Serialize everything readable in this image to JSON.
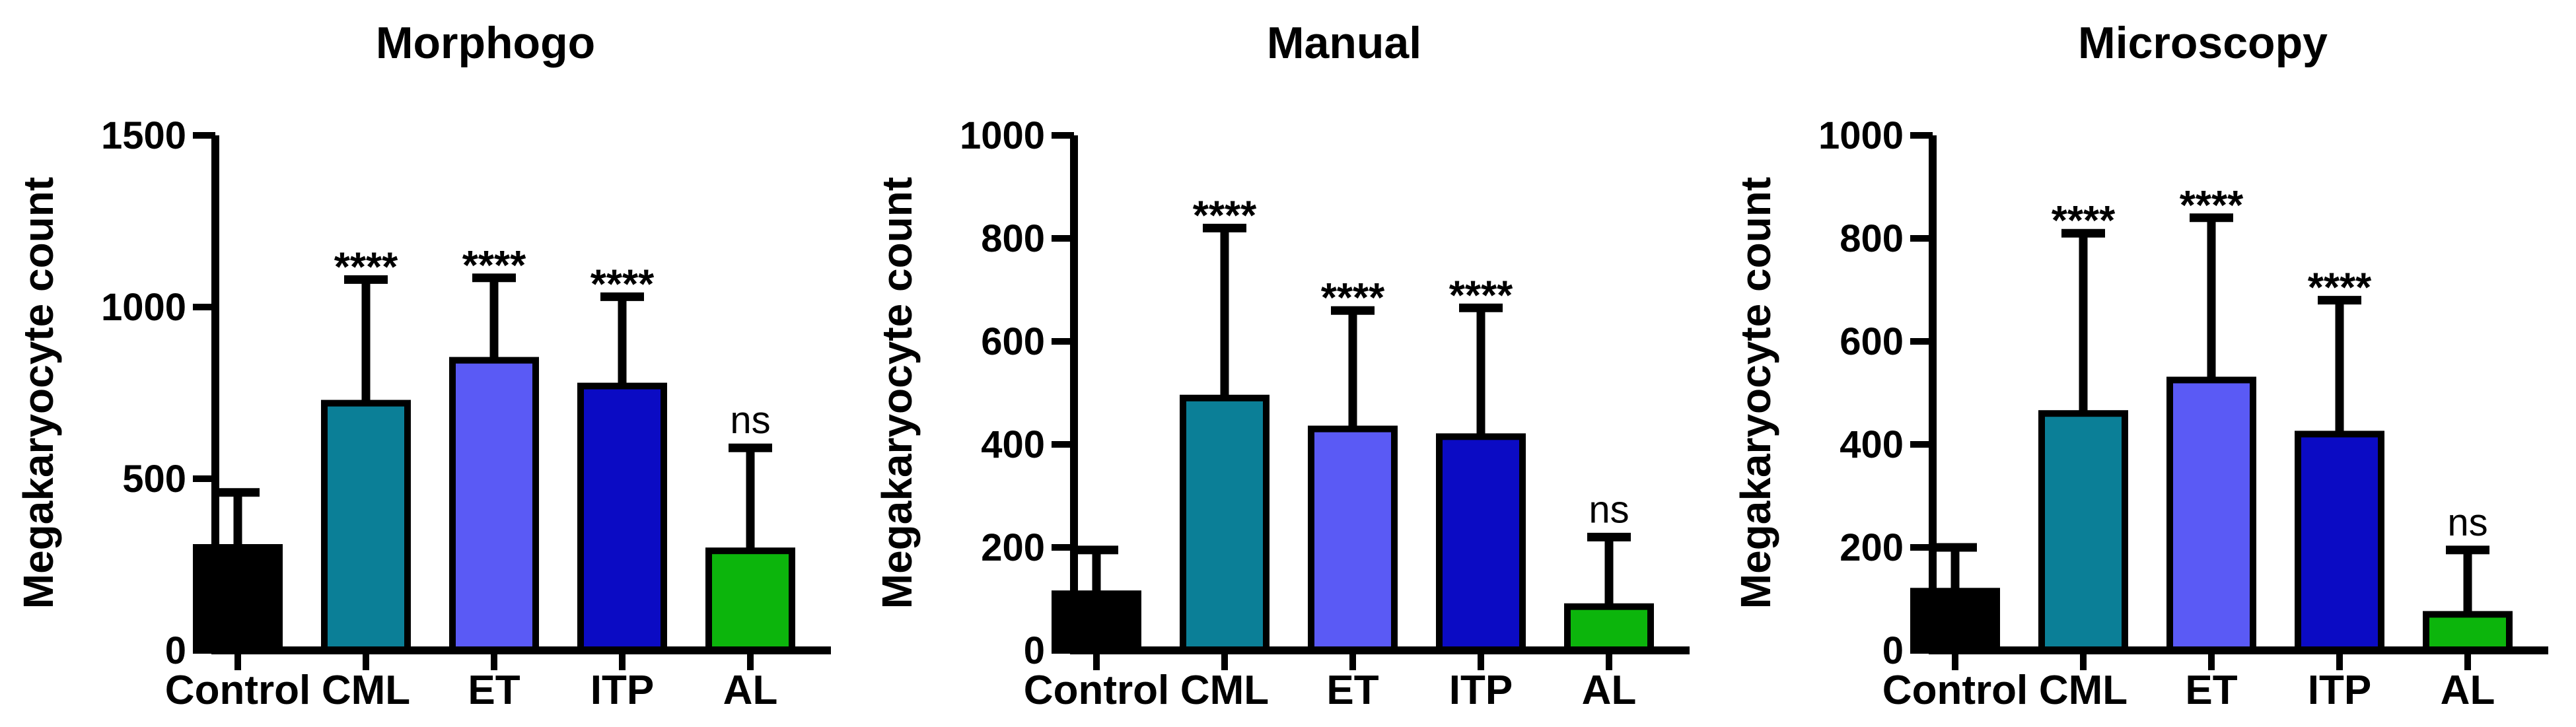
{
  "figure": {
    "background": "#ffffff",
    "text_color": "#000000",
    "axis_color": "#000000"
  },
  "chart_data": [
    {
      "type": "bar",
      "title": "Morphogo",
      "xlabel": "",
      "ylabel": "Megakaryocyte count",
      "categories": [
        "Control",
        "CML",
        "ET",
        "ITP",
        "AL"
      ],
      "values": [
        300,
        720,
        845,
        770,
        290
      ],
      "error_bar_tops": [
        460,
        1080,
        1085,
        1030,
        590
      ],
      "significance": [
        "",
        "****",
        "****",
        "****",
        "ns"
      ],
      "bar_colors": [
        "#000000",
        "#0b7f97",
        "#5a5af5",
        "#0b0bc4",
        "#0cb50c"
      ],
      "ylim": [
        0,
        1500
      ],
      "yticks": [
        0,
        500,
        1000,
        1500
      ],
      "grid": false,
      "legend": "none"
    },
    {
      "type": "bar",
      "title": "Manual",
      "xlabel": "",
      "ylabel": "Megakaryocyte count",
      "categories": [
        "Control",
        "CML",
        "ET",
        "ITP",
        "AL"
      ],
      "values": [
        110,
        490,
        430,
        415,
        85
      ],
      "error_bar_tops": [
        195,
        820,
        660,
        665,
        220
      ],
      "significance": [
        "",
        "****",
        "****",
        "****",
        "ns"
      ],
      "bar_colors": [
        "#000000",
        "#0b7f97",
        "#5a5af5",
        "#0b0bc4",
        "#0cb50c"
      ],
      "ylim": [
        0,
        1000
      ],
      "yticks": [
        0,
        200,
        400,
        600,
        800,
        1000
      ],
      "grid": false,
      "legend": "none"
    },
    {
      "type": "bar",
      "title": "Microscopy",
      "xlabel": "",
      "ylabel": "Megakaryocyte count",
      "categories": [
        "Control",
        "CML",
        "ET",
        "ITP",
        "AL"
      ],
      "values": [
        115,
        460,
        525,
        420,
        70
      ],
      "error_bar_tops": [
        200,
        810,
        840,
        680,
        195
      ],
      "significance": [
        "",
        "****",
        "****",
        "****",
        "ns"
      ],
      "bar_colors": [
        "#000000",
        "#0b7f97",
        "#5a5af5",
        "#0b0bc4",
        "#0cb50c"
      ],
      "ylim": [
        0,
        1000
      ],
      "yticks": [
        0,
        200,
        400,
        600,
        800,
        1000
      ],
      "grid": false,
      "legend": "none"
    }
  ]
}
